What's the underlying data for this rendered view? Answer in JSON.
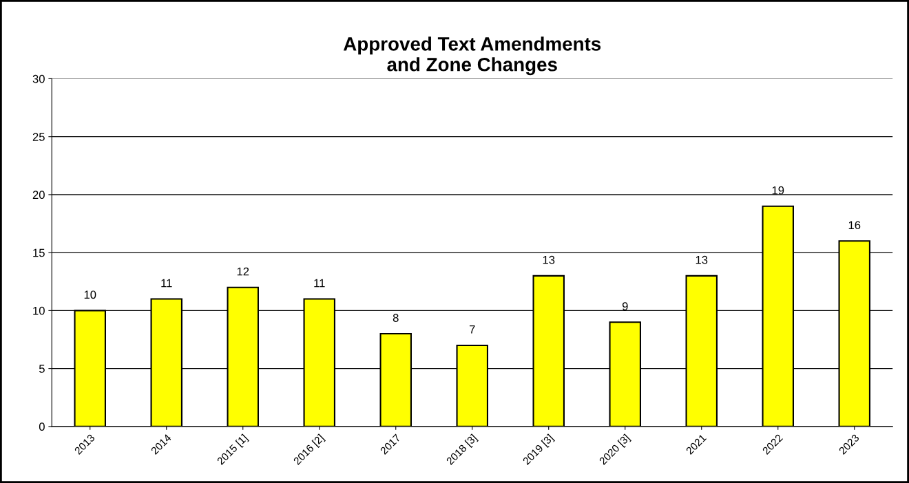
{
  "chart_data": {
    "type": "bar",
    "title": "Approved Text Amendments\nand Zone Changes",
    "categories": [
      "2013",
      "2014",
      "2015 [1]",
      "2016 [2]",
      "2017",
      "2018 [3]",
      "2019 [3]",
      "2020 [3]",
      "2021",
      "2022",
      "2023"
    ],
    "values": [
      10,
      11,
      12,
      11,
      8,
      7,
      13,
      9,
      13,
      19,
      16
    ],
    "color": "#ffff00",
    "ylim": [
      0,
      30
    ],
    "yticks": [
      0,
      5,
      10,
      15,
      20,
      25,
      30
    ],
    "grid": "y",
    "data_labels": true
  }
}
